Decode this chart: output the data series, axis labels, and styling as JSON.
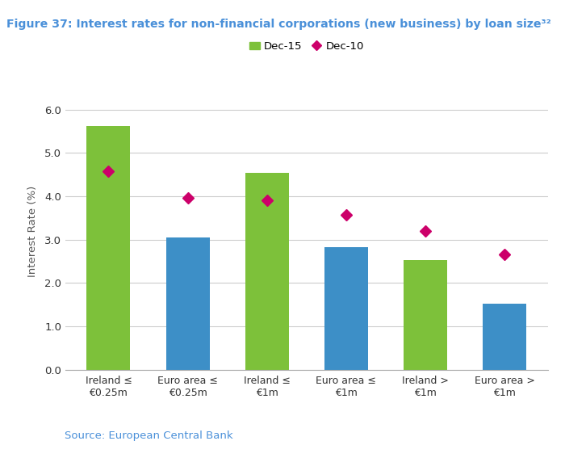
{
  "title": "Figure 37: Interest rates for non-financial corporations (new business) by loan size³²",
  "title_bg_color": "#f08080",
  "title_text_color": "#4a90d9",
  "ylabel": "Interest Rate (%)",
  "ylim": [
    0,
    6.4
  ],
  "yticks": [
    0.0,
    1.0,
    2.0,
    3.0,
    4.0,
    5.0,
    6.0
  ],
  "ytick_labels": [
    "0.0",
    "1.0",
    "2.0",
    "3.0",
    "4.0",
    "5.0",
    "6.0"
  ],
  "categories": [
    "Ireland ≤\n€0.25m",
    "Euro area ≤\n€0.25m",
    "Ireland ≤\n€1m",
    "Euro area ≤\n€1m",
    "Ireland >\n€1m",
    "Euro area >\n€1m"
  ],
  "bar_values": [
    5.62,
    3.05,
    4.55,
    2.82,
    2.52,
    1.52
  ],
  "bar_colors_pattern": [
    "#7dc13a",
    "#3d8fc7",
    "#7dc13a",
    "#3d8fc7",
    "#7dc13a",
    "#3d8fc7"
  ],
  "diamond_values": [
    4.58,
    3.97,
    3.9,
    3.58,
    3.2,
    2.65
  ],
  "diamond_color": "#cc006a",
  "legend_bar_label": "Dec-15",
  "legend_diamond_label": "Dec-10",
  "bar_color_green": "#7dc13a",
  "source_text": "Source: European Central Bank",
  "source_color": "#4a90d9",
  "background_color": "#ffffff",
  "grid_color": "#cccccc",
  "bar_width": 0.55
}
